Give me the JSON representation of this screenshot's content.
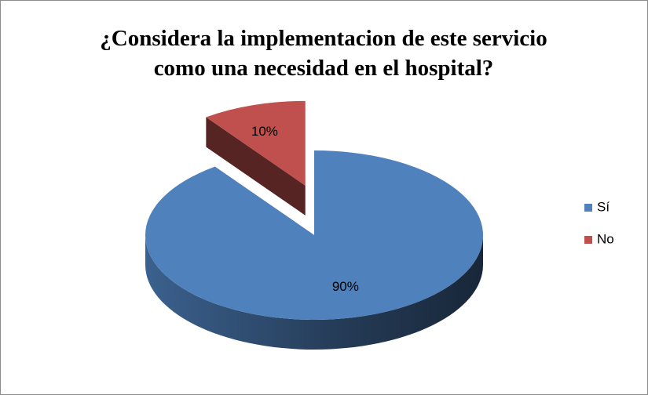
{
  "chart_data": {
    "type": "pie",
    "title": "¿Considera la implementacion de este servicio como una necesidad en el hospital?",
    "categories": [
      "Sí",
      "No"
    ],
    "values": [
      90,
      10
    ],
    "value_labels": [
      "90%",
      "10%"
    ],
    "colors": [
      "#4f81bd",
      "#c0504d"
    ],
    "legend": "right"
  }
}
